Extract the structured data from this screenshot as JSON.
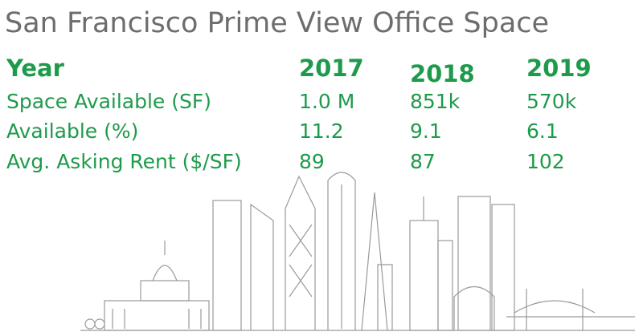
{
  "title": "San Francisco Prime View Office Space",
  "table": {
    "header": [
      "Year",
      "2017",
      "2018",
      "2019"
    ],
    "rows": [
      [
        "Space Available (SF)",
        "1.0 M",
        "851k",
        "570k"
      ],
      [
        "Available (%)",
        "11.2",
        "9.1",
        "6.1"
      ],
      [
        "Avg. Asking Rent ($/SF)",
        "89",
        "87",
        "102"
      ]
    ]
  }
}
